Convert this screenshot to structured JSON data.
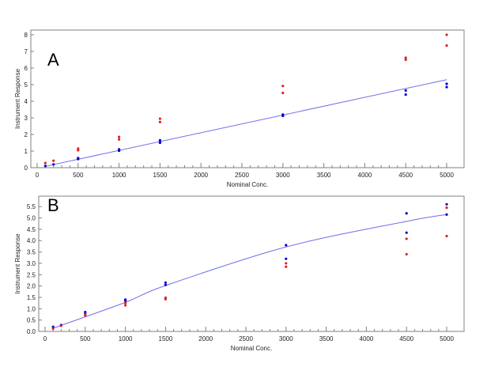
{
  "chart_data": [
    {
      "type": "scatter",
      "panel_label": "A",
      "xlabel": "Nominal Conc.",
      "ylabel": "Instrument Response",
      "xlim": [
        0,
        5000
      ],
      "ylim": [
        0,
        8
      ],
      "x_ticks": [
        0,
        500,
        1000,
        1500,
        2000,
        2500,
        3000,
        3500,
        4000,
        4500,
        5000
      ],
      "x_minor_step": 100,
      "y_ticks": [
        0,
        1,
        2,
        3,
        4,
        5,
        6,
        7,
        8
      ],
      "grid": false,
      "series": [
        {
          "color": "#0000cc",
          "points": [
            [
              100,
              0.1
            ],
            [
              200,
              0.2
            ],
            [
              500,
              0.52
            ],
            [
              500,
              0.58
            ],
            [
              1000,
              1.02
            ],
            [
              1000,
              1.1
            ],
            [
              1500,
              1.5
            ],
            [
              1500,
              1.65
            ],
            [
              3000,
              3.12
            ],
            [
              3000,
              3.2
            ],
            [
              4500,
              4.4
            ],
            [
              4500,
              4.65
            ],
            [
              5000,
              4.85
            ],
            [
              5000,
              5.05
            ]
          ]
        },
        {
          "color": "#dd2222",
          "points": [
            [
              100,
              0.28
            ],
            [
              200,
              0.42
            ],
            [
              500,
              1.05
            ],
            [
              500,
              1.15
            ],
            [
              1000,
              1.7
            ],
            [
              1000,
              1.85
            ],
            [
              1500,
              2.75
            ],
            [
              1500,
              2.95
            ],
            [
              3000,
              4.5
            ],
            [
              3000,
              4.92
            ],
            [
              4500,
              6.5
            ],
            [
              4500,
              6.62
            ],
            [
              5000,
              7.35
            ],
            [
              5000,
              8.0
            ]
          ]
        }
      ],
      "fit": {
        "kind": "linear",
        "color": "#6f6fe8",
        "points": [
          [
            100,
            0.08
          ],
          [
            5000,
            5.3
          ]
        ]
      }
    },
    {
      "type": "scatter",
      "panel_label": "B",
      "xlabel": "Nominal Conc.",
      "ylabel": "Instrument Response",
      "xlim": [
        0,
        5000
      ],
      "ylim": [
        0,
        5.75
      ],
      "x_ticks": [
        0,
        500,
        1000,
        1500,
        2000,
        2500,
        3000,
        3500,
        4000,
        4500,
        5000
      ],
      "x_minor_step": 100,
      "y_ticks": [
        0.0,
        0.5,
        1.0,
        1.5,
        2.0,
        2.5,
        3.0,
        3.5,
        4.0,
        4.5,
        5.0,
        5.5
      ],
      "grid": false,
      "series": [
        {
          "color": "#0000cc",
          "points": [
            [
              100,
              0.2
            ],
            [
              200,
              0.28
            ],
            [
              500,
              0.78
            ],
            [
              500,
              0.85
            ],
            [
              1000,
              1.35
            ],
            [
              1000,
              1.4
            ],
            [
              1500,
              2.05
            ],
            [
              1500,
              2.15
            ],
            [
              3000,
              3.2
            ],
            [
              3000,
              3.8
            ],
            [
              4500,
              4.35
            ],
            [
              4500,
              5.2
            ],
            [
              5000,
              5.15
            ],
            [
              5000,
              5.6
            ]
          ]
        },
        {
          "color": "#dd2222",
          "points": [
            [
              100,
              0.12
            ],
            [
              200,
              0.25
            ],
            [
              500,
              0.7
            ],
            [
              500,
              0.75
            ],
            [
              1000,
              1.15
            ],
            [
              1000,
              1.25
            ],
            [
              1500,
              1.42
            ],
            [
              1500,
              1.48
            ],
            [
              3000,
              2.85
            ],
            [
              3000,
              3.0
            ],
            [
              4500,
              3.4
            ],
            [
              4500,
              4.08
            ],
            [
              5000,
              4.2
            ],
            [
              5000,
              5.45
            ]
          ]
        }
      ],
      "fit": {
        "kind": "quadratic",
        "color": "#6f6fe8",
        "points": [
          [
            100,
            0.14
          ],
          [
            1000,
            1.28
          ],
          [
            1500,
            2.02
          ],
          [
            3000,
            3.72
          ],
          [
            4500,
            4.85
          ],
          [
            5000,
            5.15
          ]
        ]
      }
    }
  ]
}
